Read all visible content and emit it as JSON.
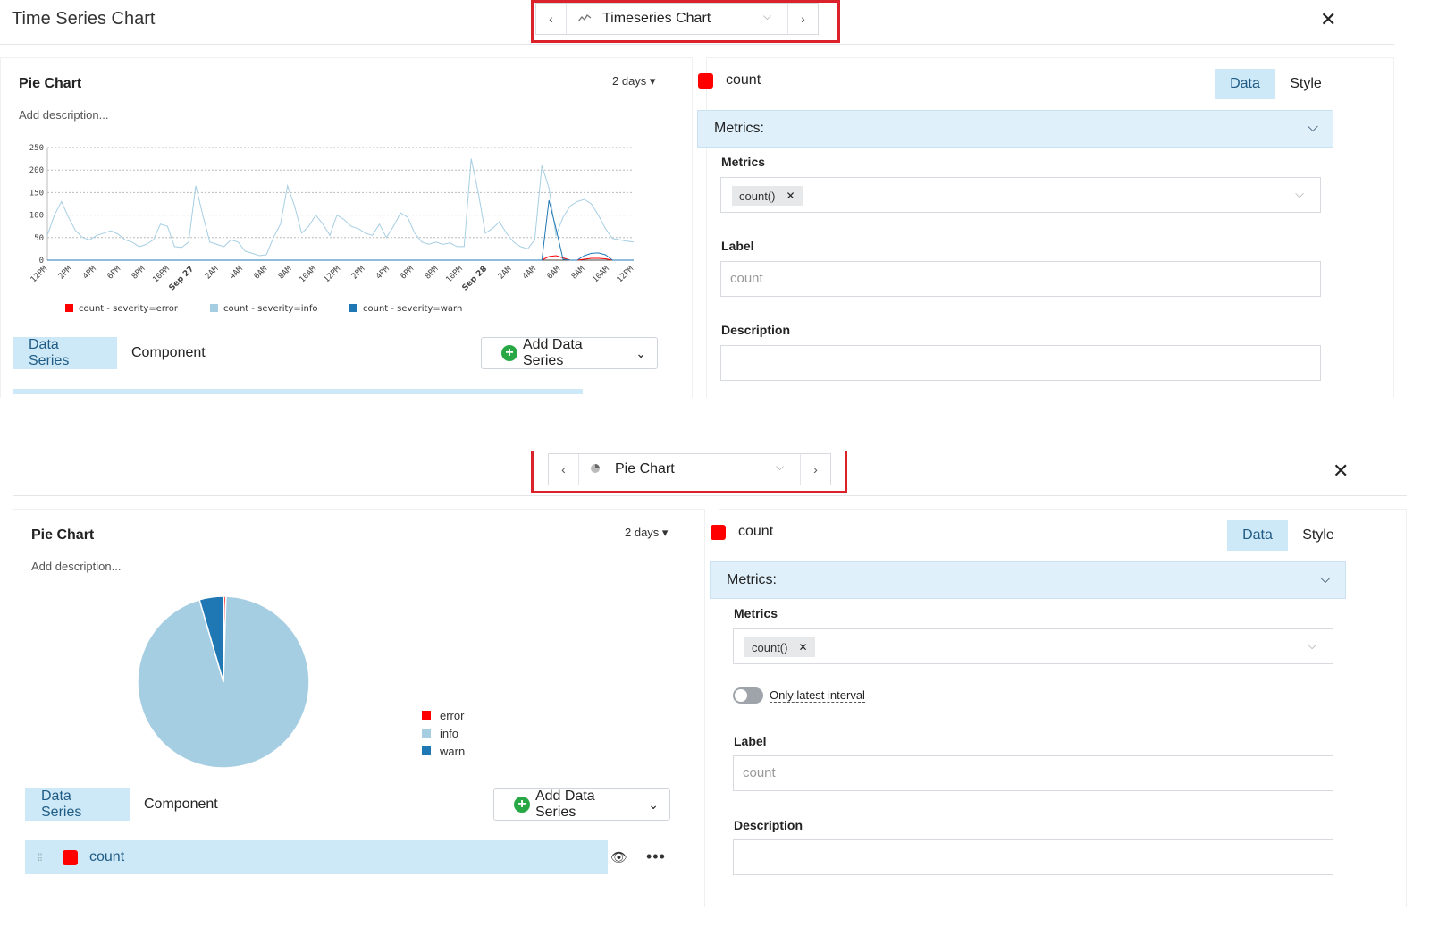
{
  "colors": {
    "error": "#ff0000",
    "info": "#a6cee3",
    "warn": "#1f78b4",
    "accent": "#cde8f6",
    "highlight": "#d9222a"
  },
  "top": {
    "header_title": "Time Series Chart",
    "selector_label": "Timeseries Chart",
    "selector_icon": "line-chart-icon",
    "card": {
      "title": "Pie Chart",
      "description": "Add description...",
      "range": "2 days ▾"
    },
    "tabs": {
      "data_series": "Data Series",
      "component": "Component"
    },
    "add_series": "Add Data Series",
    "right": {
      "series_name": "count",
      "tab_data": "Data",
      "tab_style": "Style",
      "metrics_header": "Metrics:",
      "metrics_label": "Metrics",
      "metric_chip": "count()",
      "label_label": "Label",
      "label_placeholder": "count",
      "description_label": "Description"
    }
  },
  "bottom": {
    "selector_label": "Pie Chart",
    "selector_icon": "pie-chart-icon",
    "card": {
      "title": "Pie Chart",
      "description": "Add description...",
      "range": "2 days ▾"
    },
    "tabs": {
      "data_series": "Data Series",
      "component": "Component"
    },
    "add_series": "Add Data Series",
    "series_row_label": "count",
    "right": {
      "series_name": "count",
      "tab_data": "Data",
      "tab_style": "Style",
      "metrics_header": "Metrics:",
      "metrics_label": "Metrics",
      "metric_chip": "count()",
      "toggle_label": "Only latest interval",
      "label_label": "Label",
      "label_placeholder": "count",
      "description_label": "Description"
    }
  },
  "chart_data": [
    {
      "type": "line",
      "title": "",
      "x_ticks": [
        "12PM",
        "2PM",
        "4PM",
        "6PM",
        "8PM",
        "10PM",
        "Sep 27",
        "2AM",
        "4AM",
        "6AM",
        "8AM",
        "10AM",
        "12PM",
        "2PM",
        "4PM",
        "6PM",
        "8PM",
        "10PM",
        "Sep 28",
        "2AM",
        "4AM",
        "6AM",
        "8AM",
        "10AM",
        "12PM"
      ],
      "y_ticks": [
        0,
        50,
        100,
        150,
        200,
        250
      ],
      "ylim": [
        0,
        250
      ],
      "legend": "bottom",
      "grid": true,
      "series": [
        {
          "name": "count - severity=error",
          "color": "#ff0000",
          "values": [
            0,
            0,
            0,
            0,
            0,
            0,
            0,
            0,
            0,
            0,
            0,
            0,
            0,
            0,
            0,
            0,
            0,
            0,
            0,
            0,
            0,
            0,
            0,
            0,
            0,
            0,
            0,
            0,
            0,
            0,
            0,
            0,
            0,
            0,
            0,
            0,
            0,
            0,
            0,
            0,
            0,
            0,
            0,
            0,
            0,
            0,
            0,
            0,
            0,
            0,
            0,
            0,
            0,
            0,
            0,
            0,
            0,
            0,
            0,
            0,
            0,
            0,
            0,
            0,
            0,
            0,
            0,
            0,
            0,
            0,
            0,
            8,
            10,
            5,
            0,
            0,
            2,
            4,
            4,
            3,
            0,
            0,
            0,
            0
          ]
        },
        {
          "name": "count - severity=info",
          "color": "#a6cee3",
          "values": [
            55,
            100,
            130,
            95,
            65,
            50,
            45,
            55,
            60,
            65,
            58,
            45,
            40,
            30,
            35,
            45,
            80,
            75,
            30,
            28,
            40,
            165,
            100,
            40,
            35,
            30,
            45,
            40,
            20,
            15,
            10,
            12,
            50,
            80,
            165,
            120,
            60,
            75,
            100,
            80,
            55,
            100,
            90,
            75,
            70,
            60,
            55,
            80,
            50,
            75,
            105,
            95,
            60,
            40,
            35,
            40,
            35,
            38,
            30,
            30,
            225,
            150,
            60,
            70,
            85,
            60,
            40,
            30,
            25,
            45,
            210,
            160,
            55,
            95,
            120,
            130,
            135,
            125,
            100,
            70,
            48,
            45,
            42,
            40
          ]
        },
        {
          "name": "count - severity=warn",
          "color": "#1f78b4",
          "values": [
            0,
            0,
            0,
            0,
            0,
            0,
            0,
            0,
            0,
            0,
            0,
            0,
            0,
            0,
            0,
            0,
            0,
            0,
            0,
            0,
            0,
            0,
            0,
            0,
            0,
            0,
            0,
            0,
            0,
            0,
            0,
            0,
            0,
            0,
            0,
            0,
            0,
            0,
            0,
            0,
            0,
            0,
            0,
            0,
            0,
            0,
            0,
            0,
            0,
            0,
            0,
            0,
            0,
            0,
            0,
            0,
            0,
            0,
            0,
            0,
            0,
            0,
            0,
            0,
            0,
            0,
            0,
            0,
            0,
            0,
            0,
            133,
            70,
            2,
            0,
            0,
            10,
            15,
            16,
            12,
            0,
            0,
            0,
            0
          ]
        }
      ]
    },
    {
      "type": "pie",
      "title": "",
      "legend": "right",
      "categories": [
        "error",
        "info",
        "warn"
      ],
      "values": [
        0.4,
        95.0,
        4.6
      ],
      "colors": [
        "#ff0000",
        "#a6cee3",
        "#1f78b4"
      ]
    }
  ]
}
